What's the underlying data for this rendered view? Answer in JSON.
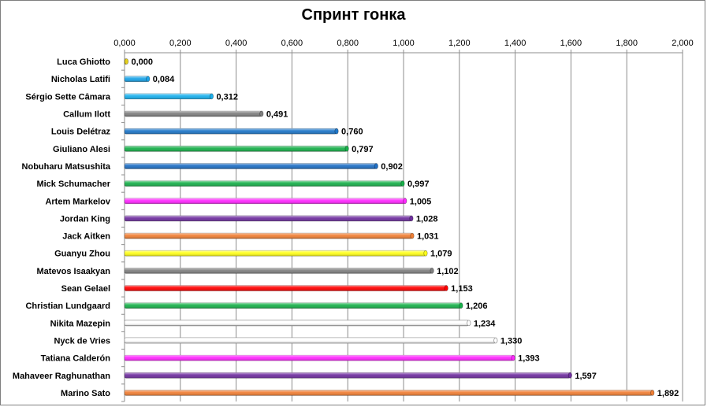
{
  "chart_data": {
    "type": "bar",
    "orientation": "horizontal",
    "title": "Спринт гонка",
    "xlabel": "",
    "ylabel": "",
    "xlim": [
      0,
      2
    ],
    "x_ticks": [
      0,
      0.2,
      0.4,
      0.6,
      0.8,
      1.0,
      1.2,
      1.4,
      1.6,
      1.8,
      2.0
    ],
    "x_tick_labels": [
      "0,000",
      "0,200",
      "0,400",
      "0,600",
      "0,800",
      "1,000",
      "1,200",
      "1,400",
      "1,600",
      "1,800",
      "2,000"
    ],
    "x_axis_position": "top",
    "grid": true,
    "legend": "none",
    "categories": [
      "Luca Ghiotto",
      "Nicholas Latifi",
      "Sérgio Sette Câmara",
      "Callum Ilott",
      "Louis Delétraz",
      "Giuliano Alesi",
      "Nobuharu Matsushita",
      "Mick Schumacher",
      "Artem Markelov",
      "Jordan King",
      "Jack Aitken",
      "Guanyu Zhou",
      "Matevos Isaakyan",
      "Sean Gelael",
      "Christian Lundgaard",
      "Nikita Mazepin",
      "Nyck de Vries",
      "Tatiana Calderón",
      "Mahaveer Raghunathan",
      "Marino Sato"
    ],
    "values": [
      0.0,
      0.084,
      0.312,
      0.491,
      0.76,
      0.797,
      0.902,
      0.997,
      1.005,
      1.028,
      1.031,
      1.079,
      1.102,
      1.153,
      1.206,
      1.234,
      1.33,
      1.393,
      1.597,
      1.892
    ],
    "value_labels": [
      "0,000",
      "0,084",
      "0,312",
      "0,491",
      "0,760",
      "0,797",
      "0,902",
      "0,997",
      "1,005",
      "1,028",
      "1,031",
      "1,079",
      "1,102",
      "1,153",
      "1,206",
      "1,234",
      "1,330",
      "1,393",
      "1,597",
      "1,892"
    ],
    "colors": [
      "#e6d11c",
      "#1aa3e8",
      "#1ab0ec",
      "#7f7f7f",
      "#1f77c9",
      "#18b04a",
      "#1f6fc4",
      "#18b04a",
      "#ff27ff",
      "#7030a0",
      "#f07f35",
      "#ffff1a",
      "#808080",
      "#ff0000",
      "#18b04a",
      "#ffffff",
      "#ffffff",
      "#ff27ff",
      "#7030a0",
      "#f07f35"
    ]
  }
}
